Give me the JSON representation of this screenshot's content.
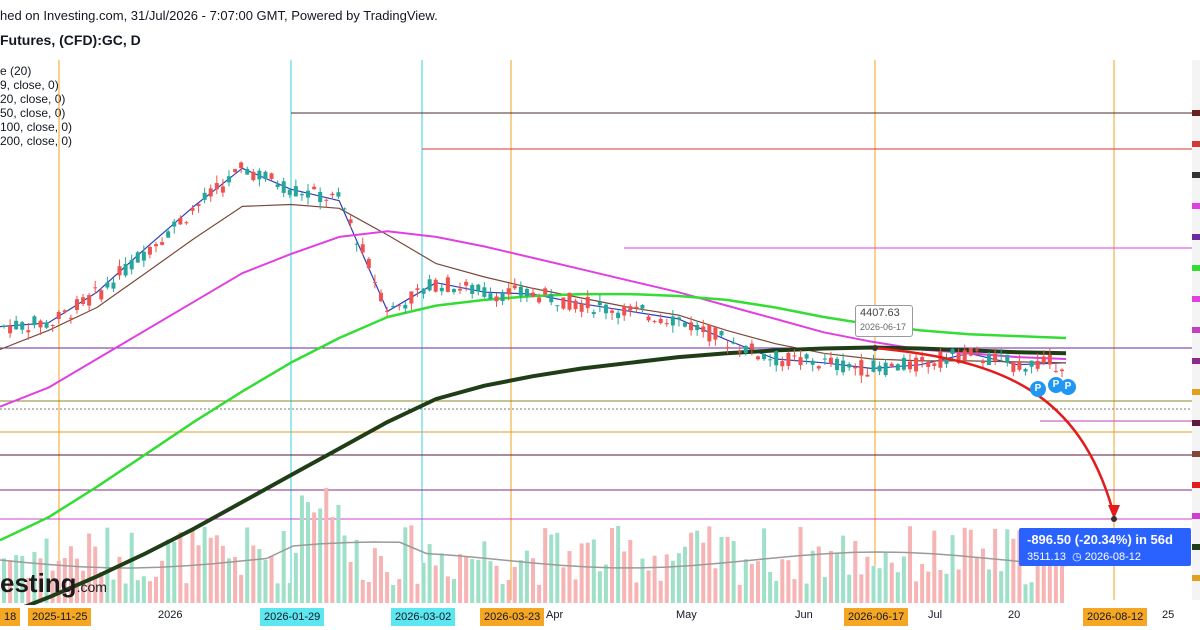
{
  "header": {
    "line1": "hed on Investing.com, 31/Jul/2026 - 7:07:00 GMT, Powered by TradingView.",
    "line2": "Futures, (CFD):GC, D"
  },
  "legend": [
    "e (20)",
    "9, close, 0)",
    "20, close, 0)",
    "50, close, 0)",
    "100, close, 0)",
    "200, close, 0)"
  ],
  "watermark": {
    "main": "esting",
    "suffix": ".com"
  },
  "x_axis": {
    "labels": [
      {
        "text": "18",
        "highlight": "orange"
      },
      {
        "text": "2025-11-25",
        "highlight": "orange"
      },
      {
        "text": "2026",
        "highlight": ""
      },
      {
        "text": "2026-01-29",
        "highlight": "cyan"
      },
      {
        "text": "2026-03-02",
        "highlight": "cyan"
      },
      {
        "text": "2026-03-23",
        "highlight": "orange"
      },
      {
        "text": "Apr",
        "highlight": ""
      },
      {
        "text": "May",
        "highlight": ""
      },
      {
        "text": "Jun",
        "highlight": ""
      },
      {
        "text": "2026-06-17",
        "highlight": "orange"
      },
      {
        "text": "Jul",
        "highlight": ""
      },
      {
        "text": "20",
        "highlight": ""
      },
      {
        "text": "2026-08-12",
        "highlight": "orange"
      },
      {
        "text": "25",
        "highlight": ""
      }
    ]
  },
  "projection": {
    "change": "-896.50 (-20.34%) in 56d",
    "target": "3511.13",
    "target_date": "2026-08-12"
  },
  "tooltip": {
    "price": "4407.63",
    "date": "2026-06-17"
  },
  "badges": [
    "P",
    "P",
    "P"
  ],
  "colors": {
    "up": "#26a69a",
    "down": "#ef5350",
    "ma9": "#2b3fbf",
    "ma20": "#7b4a3a",
    "ma50": "#e040e0",
    "ma100": "#33dd33",
    "ma200": "#1f3d17",
    "projection": "#e31b1b",
    "accent": "#2962ff"
  },
  "chart_data": {
    "type": "line",
    "series": [
      {
        "values": [
          4520,
          4540,
          4700,
          4930,
          5150,
          5350,
          5240,
          5180,
          4600,
          4750,
          4700,
          4690,
          4640,
          4600,
          4560,
          4450,
          4350,
          4330,
          4300,
          4320,
          4380,
          4320,
          4330
        ]
      },
      {
        "values": [
          4400,
          4500,
          4620,
          4800,
          4980,
          5150,
          5160,
          5140,
          5000,
          4850,
          4780,
          4720,
          4670,
          4620,
          4580,
          4500,
          4430,
          4380,
          4350,
          4340,
          4340,
          4335,
          4330
        ]
      },
      {
        "values": [
          4100,
          4200,
          4350,
          4500,
          4650,
          4800,
          4900,
          4990,
          5020,
          4990,
          4940,
          4880,
          4820,
          4760,
          4700,
          4630,
          4560,
          4490,
          4440,
          4400,
          4380,
          4360,
          4350
        ]
      },
      {
        "values": [
          3400,
          3520,
          3680,
          3850,
          4020,
          4180,
          4330,
          4460,
          4570,
          4630,
          4660,
          4680,
          4690,
          4690,
          4680,
          4660,
          4620,
          4570,
          4530,
          4500,
          4480,
          4470,
          4460
        ]
      },
      {
        "values": [
          3000,
          3100,
          3210,
          3330,
          3460,
          3600,
          3740,
          3880,
          4020,
          4140,
          4210,
          4260,
          4300,
          4330,
          4360,
          4380,
          4395,
          4405,
          4410,
          4405,
          4395,
          4385,
          4380
        ]
      }
    ],
    "projection_from": 4407.63,
    "projection_to": 3511.13,
    "projection_change": -896.5,
    "projection_change_pct": -20.34,
    "projection_days": 56,
    "projection_dates": [
      "2026-06-17",
      "2026-08-12"
    ],
    "marked_dates": [
      "2025-11-25",
      "2026-01-29",
      "2026-03-02",
      "2026-03-23",
      "2026-06-17",
      "2026-08-12"
    ]
  }
}
